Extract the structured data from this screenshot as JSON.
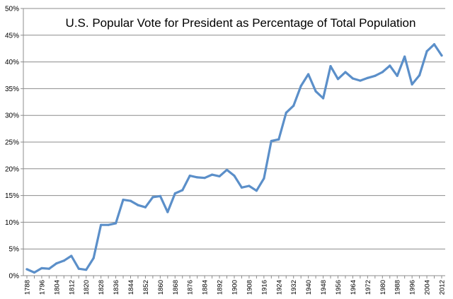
{
  "chart_data": {
    "type": "line",
    "title": "U.S. Popular Vote for President as Percentage of Total Population",
    "xlabel": "",
    "ylabel": "",
    "ylim": [
      0,
      50
    ],
    "yticks": [
      "0%",
      "5%",
      "10%",
      "15%",
      "20%",
      "25%",
      "30%",
      "35%",
      "40%",
      "45%",
      "50%"
    ],
    "xtick_labels": [
      "1788",
      "1796",
      "1804",
      "1812",
      "1820",
      "1828",
      "1836",
      "1844",
      "1852",
      "1860",
      "1868",
      "1876",
      "1884",
      "1892",
      "1900",
      "1908",
      "1916",
      "1924",
      "1932",
      "1940",
      "1948",
      "1956",
      "1964",
      "1972",
      "1980",
      "1988",
      "1996",
      "2004",
      "2012"
    ],
    "grid": "horizontal",
    "legend": "none",
    "color": "#5b8fc9",
    "x": [
      1788,
      1792,
      1796,
      1800,
      1804,
      1808,
      1812,
      1816,
      1820,
      1824,
      1828,
      1832,
      1836,
      1840,
      1844,
      1848,
      1852,
      1856,
      1860,
      1864,
      1868,
      1872,
      1876,
      1880,
      1884,
      1888,
      1892,
      1896,
      1900,
      1904,
      1908,
      1912,
      1916,
      1920,
      1924,
      1928,
      1932,
      1936,
      1940,
      1944,
      1948,
      1952,
      1956,
      1960,
      1964,
      1968,
      1972,
      1976,
      1980,
      1984,
      1988,
      1992,
      1996,
      2000,
      2004,
      2008,
      2012
    ],
    "series": [
      {
        "values": [
          1.2,
          0.6,
          1.4,
          1.3,
          2.3,
          2.8,
          3.7,
          1.3,
          1.1,
          3.3,
          9.5,
          9.5,
          9.8,
          14.2,
          14.0,
          13.2,
          12.8,
          14.7,
          14.9,
          11.9,
          15.4,
          16.0,
          18.7,
          18.4,
          18.3,
          18.9,
          18.6,
          19.8,
          18.7,
          16.5,
          16.8,
          15.9,
          18.2,
          25.2,
          25.5,
          30.5,
          31.8,
          35.5,
          37.7,
          34.5,
          33.2,
          39.2,
          36.8,
          38.1,
          36.9,
          36.5,
          37.0,
          37.4,
          38.1,
          39.3,
          37.4,
          41.0,
          35.8,
          37.5,
          42.0,
          43.3,
          41.2
        ]
      }
    ]
  }
}
